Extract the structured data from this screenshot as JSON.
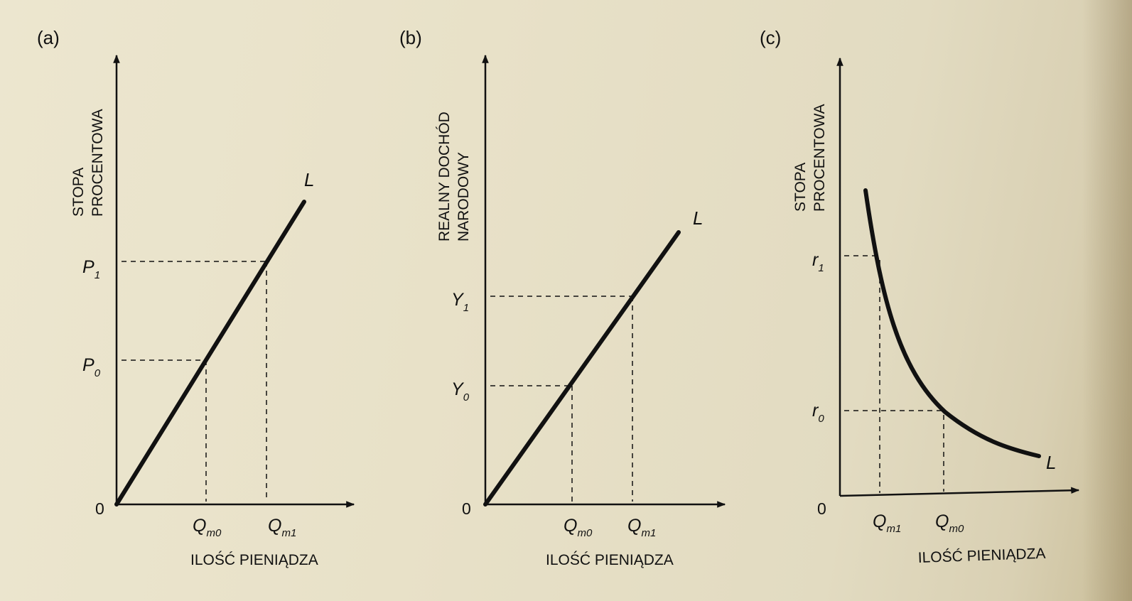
{
  "panels": {
    "a": {
      "tag": "(a)",
      "y_axis_title_line1": "STOPA",
      "y_axis_title_line2": "PROCENTOWA",
      "x_axis_title": "ILOŚĆ PIENIĄDZA",
      "origin": "0",
      "curve_label": "L",
      "y_tick_1_main": "P",
      "y_tick_1_sub": "1",
      "y_tick_0_main": "P",
      "y_tick_0_sub": "0",
      "x_tick_0_main": "Q",
      "x_tick_0_sub": "m0",
      "x_tick_1_main": "Q",
      "x_tick_1_sub": "m1"
    },
    "b": {
      "tag": "(b)",
      "y_axis_title_line1": "REALNY DOCHÓD",
      "y_axis_title_line2": "NARODOWY",
      "x_axis_title": "ILOŚĆ PIENIĄDZA",
      "origin": "0",
      "curve_label": "L",
      "y_tick_1_main": "Y",
      "y_tick_1_sub": "1",
      "y_tick_0_main": "Y",
      "y_tick_0_sub": "0",
      "x_tick_0_main": "Q",
      "x_tick_0_sub": "m0",
      "x_tick_1_main": "Q",
      "x_tick_1_sub": "m1"
    },
    "c": {
      "tag": "(c)",
      "y_axis_title_line1": "STOPA",
      "y_axis_title_line2": "PROCENTOWA",
      "x_axis_title": "ILOŚĆ PIENIĄDZA",
      "origin": "0",
      "curve_label": "L",
      "y_tick_1_main": "r",
      "y_tick_1_sub": "1",
      "y_tick_0_main": "r",
      "y_tick_0_sub": "0",
      "x_tick_1_main": "Q",
      "x_tick_1_sub": "m1",
      "x_tick_0_main": "Q",
      "x_tick_0_sub": "m0"
    }
  },
  "colors": {
    "ink": "#111111",
    "paper": "#e8e1c8"
  }
}
